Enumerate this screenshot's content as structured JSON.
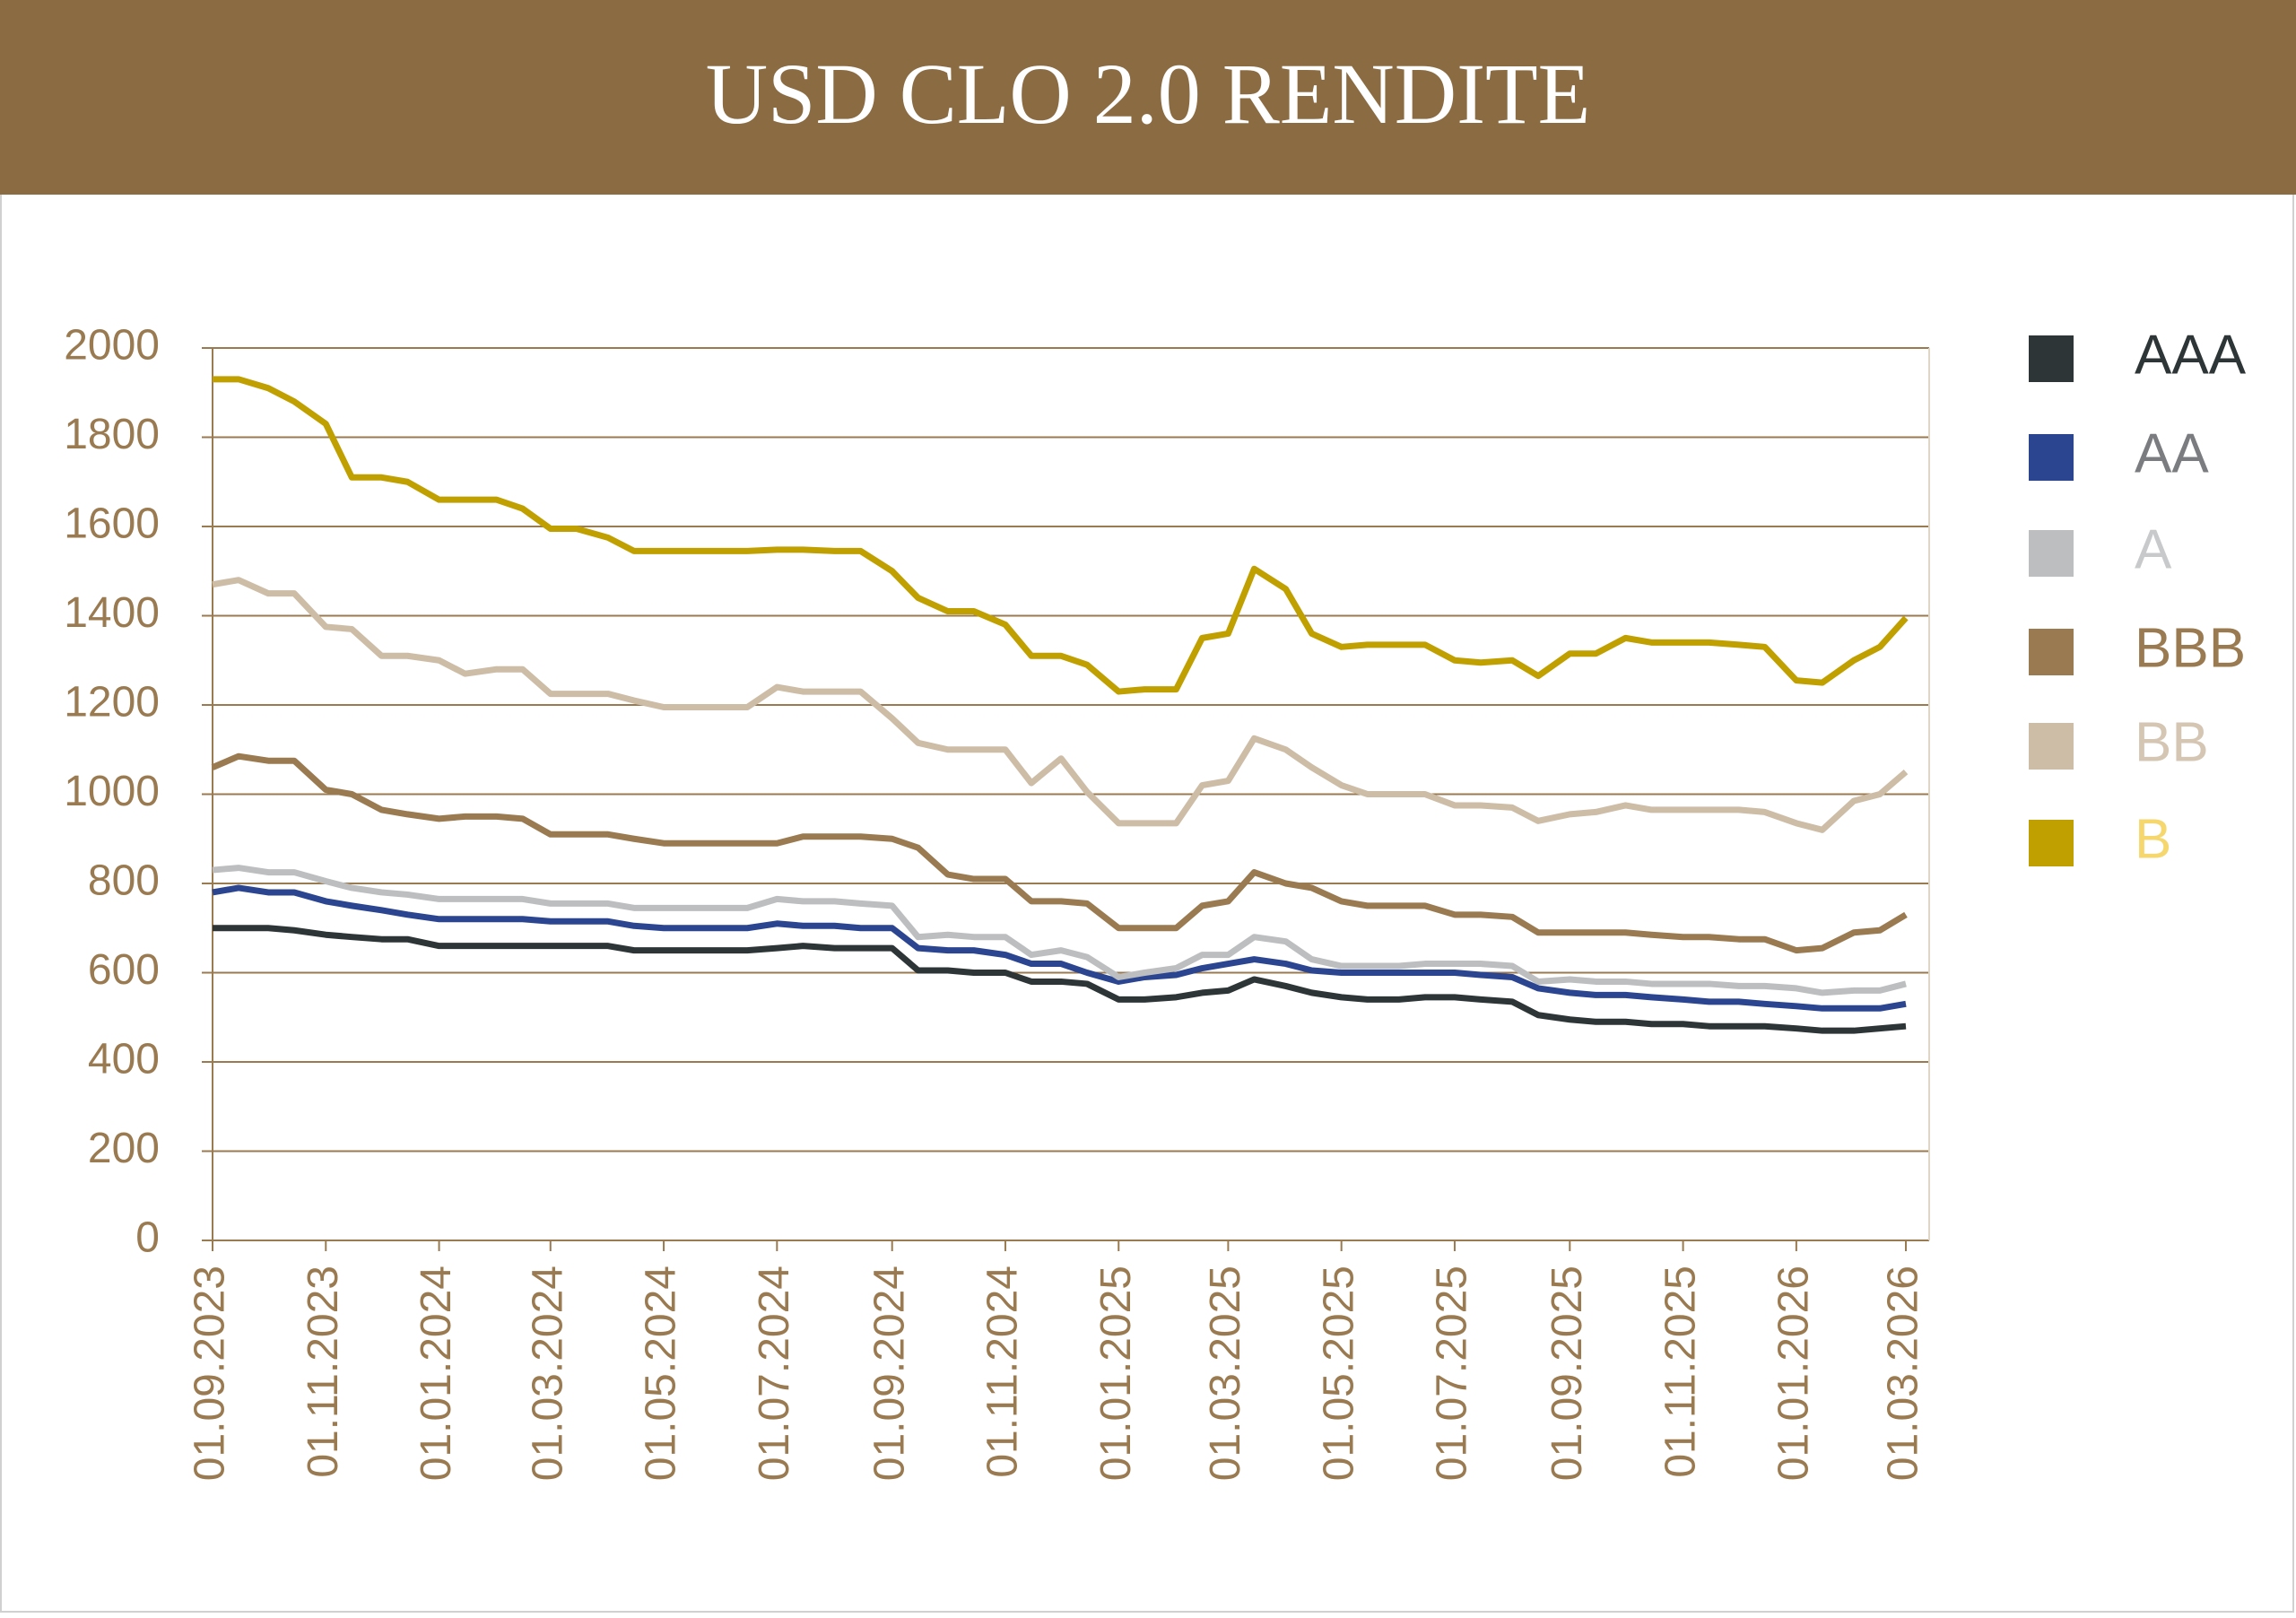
{
  "chart_data": {
    "type": "line",
    "title": "USD CLO 2.0 RENDITE",
    "x": [
      "01.09.2023",
      "15.09.2023",
      "01.10.2023",
      "15.10.2023",
      "01.11.2023",
      "15.11.2023",
      "01.12.2023",
      "15.12.2023",
      "01.01.2024",
      "15.01.2024",
      "01.02.2024",
      "15.02.2024",
      "01.03.2024",
      "15.03.2024",
      "01.04.2024",
      "15.04.2024",
      "01.05.2024",
      "15.05.2024",
      "01.06.2024",
      "15.06.2024",
      "01.07.2024",
      "15.07.2024",
      "01.08.2024",
      "15.08.2024",
      "01.09.2024",
      "15.09.2024",
      "01.10.2024",
      "15.10.2024",
      "01.11.2024",
      "15.11.2024",
      "01.12.2024",
      "15.12.2024",
      "01.01.2025",
      "15.01.2025",
      "01.02.2025",
      "15.02.2025",
      "01.03.2025",
      "15.03.2025",
      "01.04.2025",
      "15.04.2025",
      "01.05.2025",
      "15.05.2025",
      "01.06.2025",
      "15.06.2025",
      "01.07.2025",
      "15.07.2025",
      "01.08.2025",
      "15.08.2025",
      "01.09.2025",
      "15.09.2025",
      "01.10.2025",
      "15.10.2025",
      "01.11.2025",
      "15.11.2025",
      "01.12.2025",
      "15.12.2025",
      "01.01.2026",
      "15.01.2026",
      "01.02.2026",
      "15.02.2026",
      "01.03.2026"
    ],
    "xlim": [
      "01.09.2023",
      "01.03.2026"
    ],
    "xticks": [
      "01.09.2023",
      "01.11.2023",
      "01.01.2024",
      "01.03.2024",
      "01.05.2024",
      "01.07.2024",
      "01.09.2024",
      "01.11.2024",
      "01.01.2025",
      "01.03.2025",
      "01.05.2025",
      "01.07.2025",
      "01.09.2025",
      "01.11.2025",
      "01.01.2026",
      "01.03.2026"
    ],
    "ylim": [
      0,
      2000
    ],
    "yticks": [
      0,
      200,
      400,
      600,
      800,
      1000,
      1200,
      1400,
      1600,
      1800,
      2000
    ],
    "grid": true,
    "series": [
      {
        "name": "AAA",
        "color": "#2d3536",
        "label_color": "#2d3536",
        "values": [
          700,
          700,
          700,
          695,
          685,
          680,
          675,
          675,
          660,
          660,
          660,
          660,
          660,
          660,
          660,
          650,
          650,
          650,
          650,
          650,
          655,
          660,
          655,
          655,
          655,
          605,
          605,
          600,
          600,
          580,
          580,
          575,
          540,
          540,
          545,
          555,
          560,
          585,
          570,
          555,
          545,
          540,
          540,
          545,
          545,
          540,
          535,
          505,
          495,
          490,
          490,
          485,
          485,
          480,
          480,
          480,
          475,
          470,
          470,
          475,
          480
        ]
      },
      {
        "name": "AA",
        "color": "#2b4590",
        "label_color": "#7a7c80",
        "values": [
          780,
          790,
          780,
          780,
          760,
          750,
          740,
          730,
          720,
          720,
          720,
          720,
          715,
          715,
          715,
          705,
          700,
          700,
          700,
          700,
          710,
          705,
          705,
          700,
          700,
          655,
          650,
          650,
          640,
          620,
          620,
          600,
          580,
          590,
          595,
          610,
          620,
          630,
          620,
          605,
          600,
          600,
          600,
          600,
          600,
          595,
          590,
          565,
          555,
          550,
          550,
          545,
          540,
          535,
          535,
          530,
          525,
          520,
          520,
          520,
          530
        ]
      },
      {
        "name": "A",
        "color": "#bdbec0",
        "label_color": "#c8c9cb",
        "values": [
          830,
          835,
          825,
          825,
          805,
          790,
          780,
          775,
          765,
          765,
          765,
          765,
          755,
          755,
          755,
          745,
          745,
          745,
          745,
          745,
          765,
          760,
          760,
          755,
          750,
          680,
          685,
          680,
          680,
          640,
          650,
          635,
          590,
          600,
          610,
          640,
          640,
          680,
          670,
          630,
          615,
          615,
          615,
          620,
          620,
          620,
          615,
          580,
          585,
          580,
          580,
          575,
          575,
          575,
          570,
          570,
          565,
          555,
          560,
          560,
          575
        ]
      },
      {
        "name": "BBB",
        "color": "#9a7a50",
        "label_color": "#9a7a50",
        "values": [
          1060,
          1085,
          1075,
          1075,
          1010,
          1000,
          965,
          955,
          945,
          950,
          950,
          945,
          910,
          910,
          910,
          900,
          890,
          890,
          890,
          890,
          890,
          905,
          905,
          905,
          900,
          880,
          820,
          810,
          810,
          760,
          760,
          755,
          700,
          700,
          700,
          750,
          760,
          825,
          800,
          790,
          760,
          750,
          750,
          750,
          730,
          730,
          725,
          690,
          690,
          690,
          690,
          685,
          680,
          680,
          675,
          675,
          650,
          655,
          690,
          695,
          730
        ]
      },
      {
        "name": "BB",
        "color": "#cdbca6",
        "label_color": "#d5c6b3",
        "values": [
          1470,
          1480,
          1450,
          1450,
          1375,
          1370,
          1310,
          1310,
          1300,
          1270,
          1280,
          1280,
          1225,
          1225,
          1225,
          1210,
          1195,
          1195,
          1195,
          1195,
          1240,
          1230,
          1230,
          1230,
          1170,
          1115,
          1100,
          1100,
          1100,
          1025,
          1080,
          1005,
          935,
          935,
          935,
          1020,
          1030,
          1125,
          1100,
          1060,
          1020,
          1000,
          1000,
          1000,
          975,
          975,
          970,
          940,
          955,
          960,
          975,
          965,
          965,
          965,
          965,
          960,
          935,
          920,
          985,
          1000,
          1050
        ]
      },
      {
        "name": "B",
        "color": "#c0a000",
        "label_color": "#f5d76e",
        "values": [
          1930,
          1930,
          1910,
          1880,
          1830,
          1710,
          1710,
          1700,
          1660,
          1660,
          1660,
          1640,
          1595,
          1595,
          1575,
          1545,
          1545,
          1545,
          1545,
          1545,
          1548,
          1548,
          1545,
          1545,
          1500,
          1440,
          1410,
          1410,
          1380,
          1310,
          1310,
          1290,
          1230,
          1235,
          1235,
          1350,
          1360,
          1505,
          1460,
          1360,
          1330,
          1335,
          1335,
          1335,
          1300,
          1295,
          1300,
          1265,
          1315,
          1315,
          1350,
          1340,
          1340,
          1340,
          1335,
          1330,
          1255,
          1250,
          1300,
          1330,
          1395
        ]
      }
    ]
  }
}
